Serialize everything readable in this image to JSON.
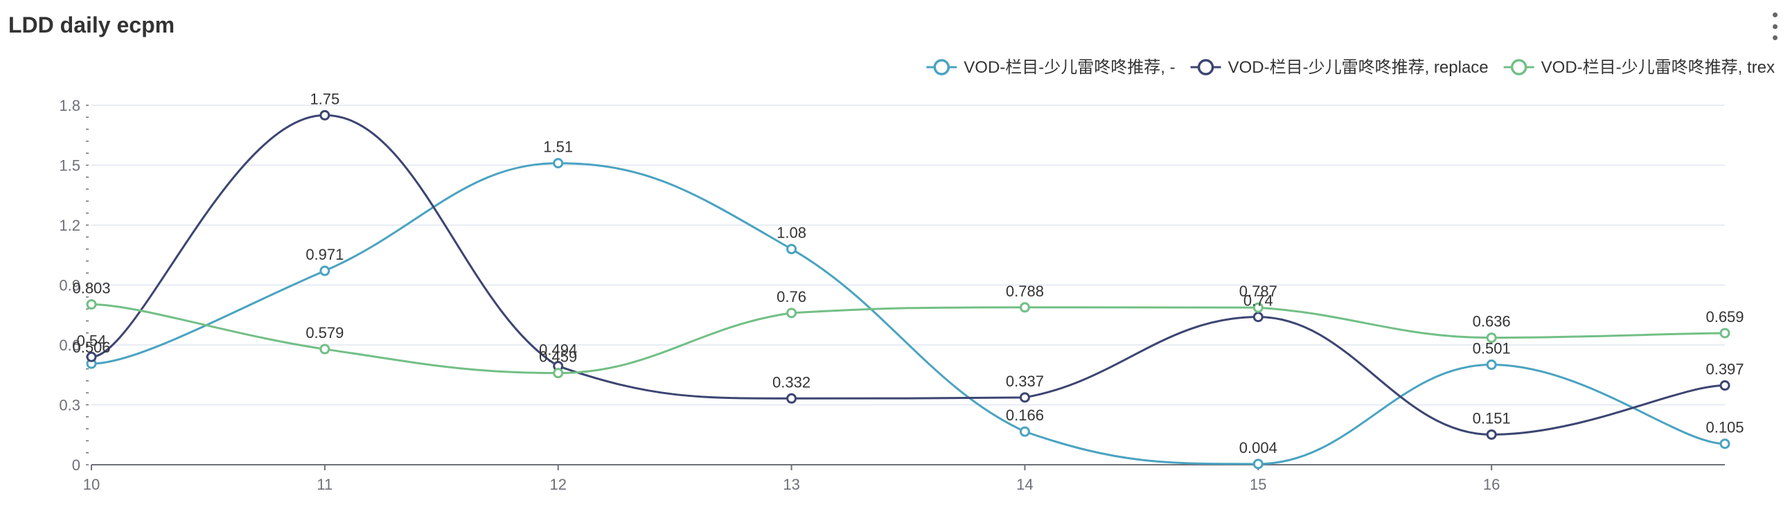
{
  "chart": {
    "title": "LDD daily ecpm",
    "menu_icon": "more-vertical-icon"
  },
  "chart_data": {
    "type": "line",
    "title": "LDD daily ecpm",
    "xlabel": "",
    "ylabel": "",
    "x": [
      "10",
      "11",
      "12",
      "13",
      "14",
      "15",
      "16",
      "17"
    ],
    "x_tick_labels": [
      "10",
      "11",
      "12",
      "13",
      "14",
      "15",
      "16"
    ],
    "y_ticks": [
      "0",
      "0.3",
      "0.6",
      "0.9",
      "1.2",
      "1.5",
      "1.8"
    ],
    "ylim": [
      0,
      1.8
    ],
    "smooth": true,
    "grid": true,
    "legend_position": "top-right",
    "series": [
      {
        "name": "VOD-栏目-少儿雷咚咚推荐, -",
        "color": "#4aa3c1",
        "values": [
          0.506,
          0.971,
          1.51,
          1.08,
          0.166,
          0.004,
          0.501,
          0.105
        ],
        "labels": [
          "0.506",
          "0.971",
          "1.51",
          "1.08",
          "0.166",
          "0.004",
          "0.501",
          "0.105"
        ]
      },
      {
        "name": "VOD-栏目-少儿雷咚咚推荐, replace",
        "color": "#3c4572",
        "values": [
          0.54,
          1.75,
          0.494,
          0.332,
          0.337,
          0.74,
          0.151,
          0.397
        ],
        "labels": [
          "0.54",
          "1.75",
          "0.494",
          "0.332",
          "0.337",
          "0.74",
          "0.151",
          "0.397"
        ]
      },
      {
        "name": "VOD-栏目-少儿雷咚咚推荐, trex",
        "color": "#72bf86",
        "values": [
          0.803,
          0.579,
          0.459,
          0.76,
          0.788,
          0.787,
          0.636,
          0.659
        ],
        "labels": [
          "0.803",
          "0.579",
          "0.459",
          "0.76",
          "0.788",
          "0.787",
          "0.636",
          "0.659"
        ]
      }
    ]
  }
}
